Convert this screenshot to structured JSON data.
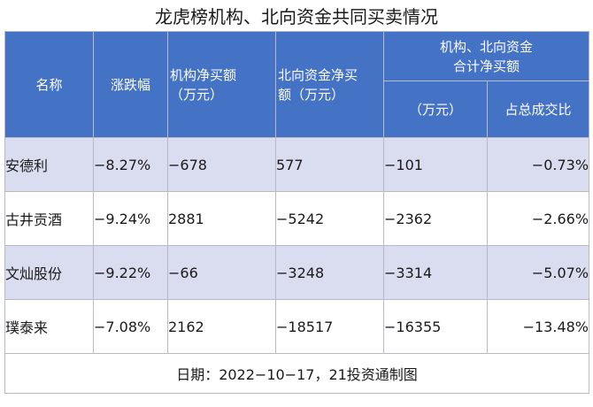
{
  "title": "龙虎榜机构、北向资金共同买卖情况",
  "headers": {
    "name": "名称",
    "change": "涨跌幅",
    "inst_net_line1": "机构净买额",
    "inst_net_line2": "（万元）",
    "north_net_line1": "北向资金净买",
    "north_net_line2": "额（万元）",
    "combined_group_line1": "机构、北向资金",
    "combined_group_line2": "合计净买额",
    "combined_amount": "（万元）",
    "combined_ratio": "占总成交比"
  },
  "rows": [
    {
      "name": "安德利",
      "change": "−8.27%",
      "inst_net": "−678",
      "north_net": "577",
      "combined": "−101",
      "ratio": "−0.73%"
    },
    {
      "name": "古井贡酒",
      "change": "−9.24%",
      "inst_net": "2881",
      "north_net": "−5242",
      "combined": "−2362",
      "ratio": "−2.66%"
    },
    {
      "name": "文灿股份",
      "change": "−9.22%",
      "inst_net": "−66",
      "north_net": "−3248",
      "combined": "−3314",
      "ratio": "−5.07%"
    },
    {
      "name": "璞泰来",
      "change": "−7.08%",
      "inst_net": "2162",
      "north_net": "−18517",
      "combined": "−16355",
      "ratio": "−13.48%"
    }
  ],
  "footer": "日期：2022−10−17，21投资通制图",
  "colors": {
    "header_bg": "#4472c4",
    "band_row": "#dadcef"
  }
}
